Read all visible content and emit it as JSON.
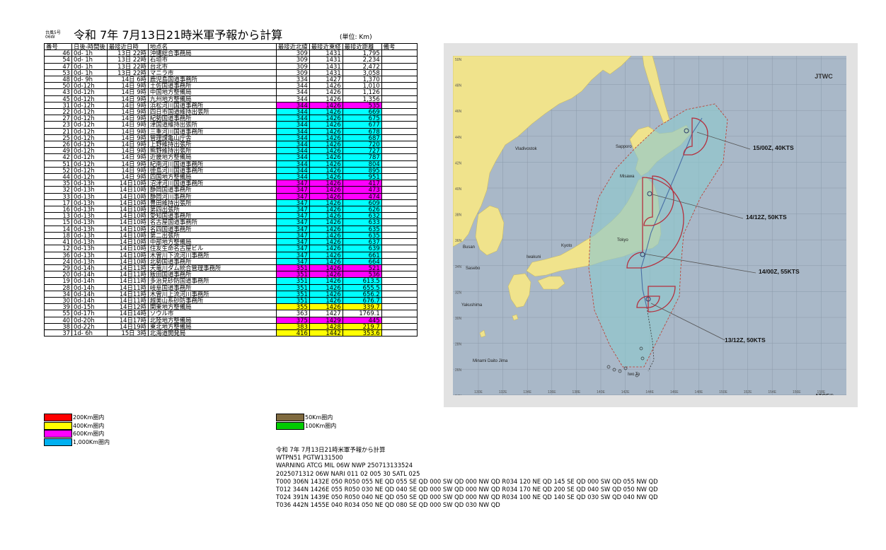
{
  "header": {
    "small_label_1": "台風5号",
    "small_label_2": "06W",
    "title": "令和 7年 7月13日21時米軍予報から計算",
    "unit": "(単位: Km)"
  },
  "table": {
    "columns": [
      "番号",
      "日後-時間後",
      "最接近日時",
      "地点名",
      "最接近北緯",
      "最接近東経",
      "最接近距離",
      "備考"
    ],
    "rows": [
      {
        "no": "46",
        "after": "0d- 1h",
        "time": "13日 22時",
        "place": "沖縄総合事務局",
        "lat": "309",
        "lon": "1431",
        "dist": "1,795",
        "color": ""
      },
      {
        "no": "54",
        "after": "0d- 1h",
        "time": "13日 22時",
        "place": "石垣市",
        "lat": "309",
        "lon": "1431",
        "dist": "2,234",
        "color": ""
      },
      {
        "no": "47",
        "after": "0d- 1h",
        "time": "13日 22時",
        "place": "台北市",
        "lat": "309",
        "lon": "1431",
        "dist": "2,472",
        "color": ""
      },
      {
        "no": "53",
        "after": "0d- 1h",
        "time": "13日 22時",
        "place": "マニラ市",
        "lat": "309",
        "lon": "1431",
        "dist": "3,058",
        "color": ""
      },
      {
        "no": "48",
        "after": "0d- 9h",
        "time": "14日 6時",
        "place": "鹿児島国道事務所",
        "lat": "334",
        "lon": "1427",
        "dist": "1,370",
        "color": ""
      },
      {
        "no": "50",
        "after": "0d-12h",
        "time": "14日 9時",
        "place": "土佐国道事務所",
        "lat": "344",
        "lon": "1426",
        "dist": "1,010",
        "color": ""
      },
      {
        "no": "43",
        "after": "0d-12h",
        "time": "14日 9時",
        "place": "中国地方整備局",
        "lat": "344",
        "lon": "1426",
        "dist": "1,126",
        "color": ""
      },
      {
        "no": "45",
        "after": "0d-12h",
        "time": "14日 9時",
        "place": "九州地方整備局",
        "lat": "344",
        "lon": "1426",
        "dist": "1,356",
        "color": ""
      },
      {
        "no": "31",
        "after": "0d-12h",
        "time": "14日 9時",
        "place": "浜松河川国道事務所",
        "lat": "344",
        "lon": "1426",
        "dist": "535",
        "color": "magenta"
      },
      {
        "no": "22",
        "after": "0d-12h",
        "time": "14日 9時",
        "place": "四日市国道維持出張所",
        "lat": "344",
        "lon": "1426",
        "dist": "669",
        "color": "cyan"
      },
      {
        "no": "27",
        "after": "0d-12h",
        "time": "14日 9時",
        "place": "紀勢国道事務所",
        "lat": "344",
        "lon": "1426",
        "dist": "675",
        "color": "cyan"
      },
      {
        "no": "23",
        "after": "0d-12h",
        "time": "14日 9時",
        "place": "津国道維持出張所",
        "lat": "344",
        "lon": "1426",
        "dist": "677",
        "color": "cyan"
      },
      {
        "no": "21",
        "after": "0d-12h",
        "time": "14日 9時",
        "place": "三重河川国道事務所",
        "lat": "344",
        "lon": "1426",
        "dist": "678",
        "color": "cyan"
      },
      {
        "no": "25",
        "after": "0d-12h",
        "time": "14日 9時",
        "place": "管理課亀山庁舎",
        "lat": "344",
        "lon": "1426",
        "dist": "687",
        "color": "cyan"
      },
      {
        "no": "26",
        "after": "0d-12h",
        "time": "14日 9時",
        "place": "上野維持出張所",
        "lat": "344",
        "lon": "1426",
        "dist": "720",
        "color": "cyan"
      },
      {
        "no": "49",
        "after": "0d-12h",
        "time": "14日 9時",
        "place": "熊野維持出張所",
        "lat": "344",
        "lon": "1426",
        "dist": "727",
        "color": "cyan"
      },
      {
        "no": "42",
        "after": "0d-12h",
        "time": "14日 9時",
        "place": "近畿地方整備局",
        "lat": "344",
        "lon": "1426",
        "dist": "787",
        "color": "cyan"
      },
      {
        "no": "51",
        "after": "0d-12h",
        "time": "14日 9時",
        "place": "紀南河川国道事務所",
        "lat": "344",
        "lon": "1426",
        "dist": "804",
        "color": "cyan"
      },
      {
        "no": "52",
        "after": "0d-12h",
        "time": "14日 9時",
        "place": "徳島河川国道事務所",
        "lat": "344",
        "lon": "1426",
        "dist": "895",
        "color": "cyan"
      },
      {
        "no": "44",
        "after": "0d-12h",
        "time": "14日 9時",
        "place": "四国地方整備局",
        "lat": "344",
        "lon": "1426",
        "dist": "951",
        "color": "cyan"
      },
      {
        "no": "35",
        "after": "0d-13h",
        "time": "14日10時",
        "place": "沼津河川国道事務所",
        "lat": "347",
        "lon": "1426",
        "dist": "417",
        "color": "magenta"
      },
      {
        "no": "32",
        "after": "0d-13h",
        "time": "14日10時",
        "place": "静岡国道事務所",
        "lat": "347",
        "lon": "1426",
        "dist": "473",
        "color": "magenta"
      },
      {
        "no": "33",
        "after": "0d-13h",
        "time": "14日10時",
        "place": "静岡河川事務所",
        "lat": "347",
        "lon": "1426",
        "dist": "474",
        "color": "magenta"
      },
      {
        "no": "17",
        "after": "0d-13h",
        "time": "14日10時",
        "place": "豊田維持出張所",
        "lat": "347",
        "lon": "1426",
        "dist": "609",
        "color": "cyan"
      },
      {
        "no": "16",
        "after": "0d-13h",
        "time": "14日10時",
        "place": "第四出張所",
        "lat": "347",
        "lon": "1426",
        "dist": "626",
        "color": "cyan"
      },
      {
        "no": "13",
        "after": "0d-13h",
        "time": "14日10時",
        "place": "愛知国道事務所",
        "lat": "347",
        "lon": "1426",
        "dist": "632",
        "color": "cyan"
      },
      {
        "no": "15",
        "after": "0d-13h",
        "time": "14日10時",
        "place": "名古屋国道事務所",
        "lat": "347",
        "lon": "1426",
        "dist": "633",
        "color": "cyan"
      },
      {
        "no": "14",
        "after": "0d-13h",
        "time": "14日10時",
        "place": "名四国道事務所",
        "lat": "347",
        "lon": "1426",
        "dist": "635",
        "color": "cyan"
      },
      {
        "no": "18",
        "after": "0d-13h",
        "time": "14日10時",
        "place": "第二出張所",
        "lat": "347",
        "lon": "1426",
        "dist": "635",
        "color": "cyan"
      },
      {
        "no": "41",
        "after": "0d-13h",
        "time": "14日10時",
        "place": "中部地方整備局",
        "lat": "347",
        "lon": "1426",
        "dist": "637",
        "color": "cyan"
      },
      {
        "no": "12",
        "after": "0d-13h",
        "time": "14日10時",
        "place": "住友生命名古屋ビル",
        "lat": "347",
        "lon": "1426",
        "dist": "639",
        "color": "cyan"
      },
      {
        "no": "36",
        "after": "0d-13h",
        "time": "14日10時",
        "place": "木曽川下流河川事務所",
        "lat": "347",
        "lon": "1426",
        "dist": "661",
        "color": "cyan"
      },
      {
        "no": "24",
        "after": "0d-13h",
        "time": "14日10時",
        "place": "北勢国道事務所",
        "lat": "347",
        "lon": "1426",
        "dist": "664",
        "color": "cyan"
      },
      {
        "no": "29",
        "after": "0d-14h",
        "time": "14日11時",
        "place": "天竜川ダム統合管理事務所",
        "lat": "351",
        "lon": "1426",
        "dist": "521",
        "color": "magenta"
      },
      {
        "no": "20",
        "after": "0d-14h",
        "time": "14日11時",
        "place": "飯田国道事務所",
        "lat": "351",
        "lon": "1426",
        "dist": "536",
        "color": "magenta"
      },
      {
        "no": "19",
        "after": "0d-14h",
        "time": "14日11時",
        "place": "多治見砂防国道事務所",
        "lat": "351",
        "lon": "1426",
        "dist": "613.5",
        "color": "cyan"
      },
      {
        "no": "28",
        "after": "0d-14h",
        "time": "14日11時",
        "place": "岐阜国道事務所",
        "lat": "351",
        "lon": "1426",
        "dist": "655.5",
        "color": "cyan"
      },
      {
        "no": "34",
        "after": "0d-14h",
        "time": "14日11時",
        "place": "木曽川上流河川事務所",
        "lat": "351",
        "lon": "1426",
        "dist": "656.2",
        "color": "cyan"
      },
      {
        "no": "30",
        "after": "0d-14h",
        "time": "14日11時",
        "place": "越美山系砂防事務所",
        "lat": "351",
        "lon": "1426",
        "dist": "676.7",
        "color": "cyan"
      },
      {
        "no": "39",
        "after": "0d-15h",
        "time": "14日12時",
        "place": "関東地方整備局",
        "lat": "355",
        "lon": "1426",
        "dist": "339.7",
        "color": "yellow"
      },
      {
        "no": "55",
        "after": "0d-17h",
        "time": "14日14時",
        "place": "ソウル市",
        "lat": "363",
        "lon": "1427",
        "dist": "1769.1",
        "color": ""
      },
      {
        "no": "40",
        "after": "0d-20h",
        "time": "14日17時",
        "place": "北陸地方整備局",
        "lat": "375",
        "lon": "1429",
        "dist": "445",
        "color": "magenta"
      },
      {
        "no": "38",
        "after": "0d-22h",
        "time": "14日19時",
        "place": "東北地方整備局",
        "lat": "383",
        "lon": "1428",
        "dist": "219.7",
        "color": "yellow"
      },
      {
        "no": "37",
        "after": "1d- 6h",
        "time": "15日 3時",
        "place": "北海道開発局",
        "lat": "416",
        "lon": "1442",
        "dist": "353.6",
        "color": "yellow"
      }
    ]
  },
  "legend": [
    {
      "label": "200Km圏内",
      "color": "#ff0000"
    },
    {
      "label": "400Km圏内",
      "color": "#ffff00"
    },
    {
      "label": "600Km圏内",
      "color": "#ff00ff"
    },
    {
      "label": "1,000Km圏内",
      "color": "#00b0f0"
    },
    {
      "label": "50Km圏内",
      "color": "#7f6a3f"
    },
    {
      "label": "100Km圏内",
      "color": "#00cc00"
    }
  ],
  "row_colors": {
    "magenta": "#ff00ff",
    "cyan": "#00ffff",
    "yellow": "#ffff00"
  },
  "map": {
    "brand_top": "JTWC",
    "brand_bottom": "ATCF®",
    "lat_labels": [
      "50N",
      "48N",
      "46N",
      "44N",
      "42N",
      "40N",
      "38N",
      "36N",
      "34N",
      "32N",
      "30N",
      "28N",
      "26N",
      "24N"
    ],
    "lon_labels": [
      "130E",
      "132E",
      "134E",
      "136E",
      "138E",
      "140E",
      "142E",
      "144E",
      "146E",
      "148E",
      "150E",
      "152E",
      "154E",
      "156E",
      "158E"
    ],
    "place_labels": [
      {
        "name": "Vladivostok"
      },
      {
        "name": "Sapporo"
      },
      {
        "name": "Misawa"
      },
      {
        "name": "Tokyo"
      },
      {
        "name": "Kyoto"
      },
      {
        "name": "Iwakuni"
      },
      {
        "name": "Busan"
      },
      {
        "name": "Sasebo"
      },
      {
        "name": "Yakushima"
      },
      {
        "name": "Minami Daito Jima"
      },
      {
        "name": "Iwo To"
      }
    ],
    "forecast_labels": [
      {
        "name": "15/00Z, 40KTS"
      },
      {
        "name": "14/12Z, 50KTS"
      },
      {
        "name": "14/00Z, 55KTS"
      },
      {
        "name": "13/12Z, 50KTS"
      }
    ],
    "colors": {
      "sea": "#a9b8c8",
      "land": "#f0e38c",
      "danger": "#8fc8cc",
      "wind": "#b5303e"
    }
  },
  "bulletin": {
    "lines": [
      "令和 7年 7月13日21時米軍予報から計算",
      "WTPN51 PGTW131500",
      "WARNING    ATCG MIL 06W NWP 250713133524",
      "2025071312 06W NARI        011   02 005 30 SATL 025",
      "T000 306N 1432E 050 R050 055 NE QD 055 SE QD 000 SW QD 000 NW QD R034 120 NE QD 145 SE QD 000 SW QD 055 NW QD",
      "T012 344N 1426E 055 R050 030 NE QD 040 SE QD 000 SW QD 000 NW QD R034 170 NE QD 200 SE QD 040 SW QD 050 NW QD",
      "T024 391N 1439E 050 R050 040 NE QD 050 SE QD 000 SW QD 000 NW QD R034 100 NE QD 140 SE QD 030 SW QD 040 NW QD",
      "T036 442N 1455E 040 R034 050 NE QD 080 SE QD 000 SW QD 030 NW QD"
    ]
  }
}
